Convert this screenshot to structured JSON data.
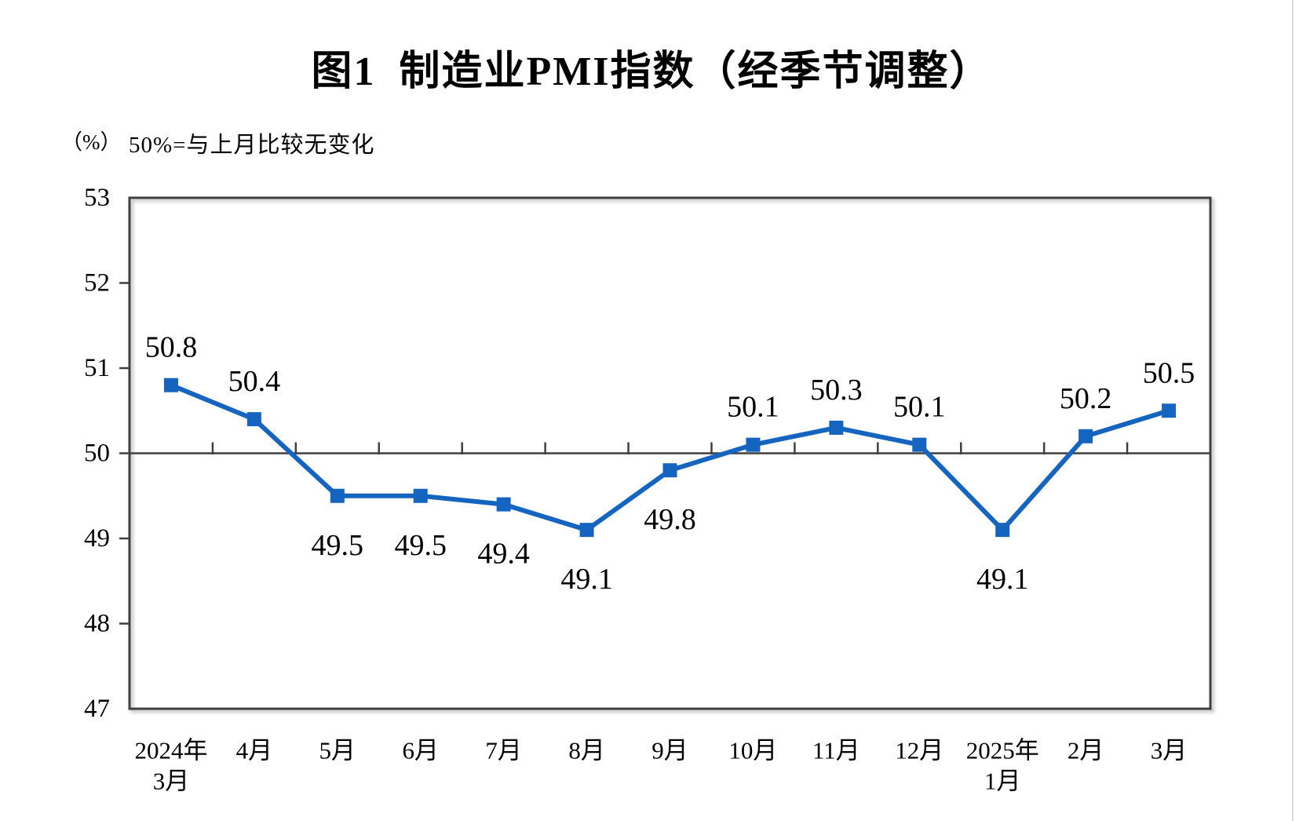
{
  "chart_data": {
    "type": "line",
    "title": "图1  制造业PMI指数（经季节调整）",
    "unit_label": "（%）",
    "note": "50%=与上月比较无变化",
    "categories": [
      [
        "2024年",
        "3月"
      ],
      [
        "4月"
      ],
      [
        "5月"
      ],
      [
        "6月"
      ],
      [
        "7月"
      ],
      [
        "8月"
      ],
      [
        "9月"
      ],
      [
        "10月"
      ],
      [
        "11月"
      ],
      [
        "12月"
      ],
      [
        "2025年",
        "1月"
      ],
      [
        "2月"
      ],
      [
        "3月"
      ]
    ],
    "values": [
      50.8,
      50.4,
      49.5,
      49.5,
      49.4,
      49.1,
      49.8,
      50.1,
      50.3,
      50.1,
      49.1,
      50.2,
      50.5
    ],
    "data_labels": [
      "50.8",
      "50.4",
      "49.5",
      "49.5",
      "49.4",
      "49.1",
      "49.8",
      "50.1",
      "50.3",
      "50.1",
      "49.1",
      "50.2",
      "50.5"
    ],
    "label_positions": [
      "above",
      "above",
      "below",
      "below",
      "below",
      "below",
      "below",
      "above",
      "above",
      "above",
      "below",
      "above",
      "above"
    ],
    "ylim": [
      47,
      53
    ],
    "yticks": [
      47,
      48,
      49,
      50,
      51,
      52,
      53
    ],
    "reference_line": 50,
    "grid": "off",
    "legend": "none",
    "colors": {
      "line": "#1565C0",
      "marker": "#1565C0",
      "axis": "#3F3F3F",
      "text": "#000000",
      "page_edge": "#DCDCDC"
    }
  }
}
